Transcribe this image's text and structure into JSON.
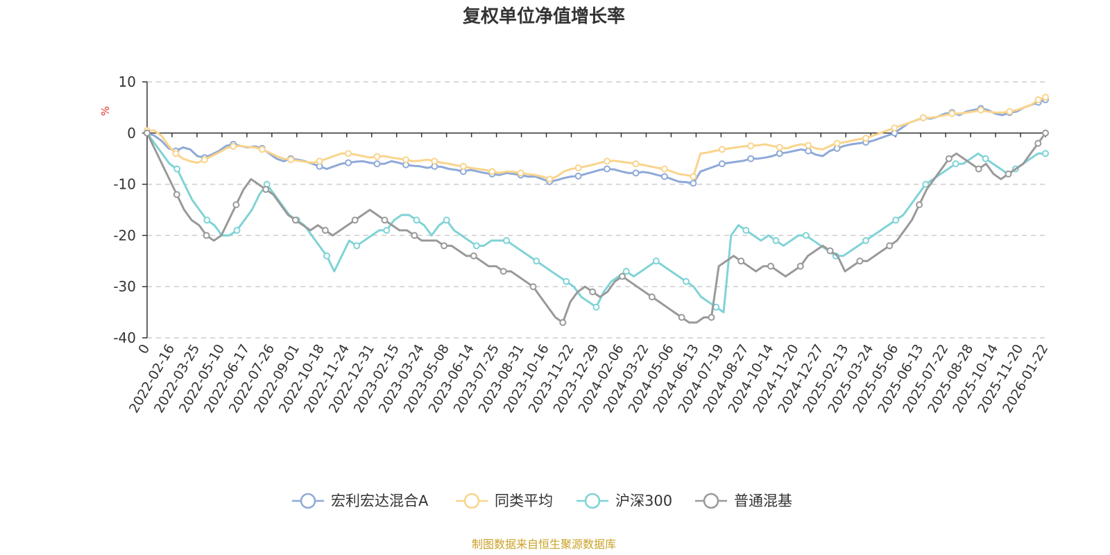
{
  "chart_data": {
    "type": "line",
    "title": "复权单位净值增长率",
    "ylabel": "%",
    "ylim": [
      -40,
      10
    ],
    "yticks": [
      10,
      0,
      -10,
      -20,
      -30,
      -40
    ],
    "grid": true,
    "legend_position": "bottom",
    "source_note": "制图数据来自恒生聚源数据库",
    "x_tick_labels": [
      "0",
      "2022-02-16",
      "2022-03-25",
      "2022-05-10",
      "2022-06-17",
      "2022-07-26",
      "2022-09-01",
      "2022-10-18",
      "2022-11-24",
      "2022-12-31",
      "2023-02-15",
      "2023-03-24",
      "2023-05-08",
      "2023-06-14",
      "2023-07-25",
      "2023-08-31",
      "2023-10-16",
      "2023-11-22",
      "2023-12-29",
      "2024-02-06",
      "2024-03-22",
      "2024-05-06",
      "2024-06-13",
      "2024-07-19",
      "2024-08-27",
      "2024-10-14",
      "2024-11-20",
      "2024-12-27",
      "2025-02-13",
      "2025-03-24",
      "2025-05-06",
      "2025-06-13",
      "2025-07-22",
      "2025-08-28",
      "2025-10-14",
      "2025-11-20",
      "2026-01-22"
    ],
    "series": [
      {
        "name": "宏利宏达混合A",
        "color": "#8ea9d8",
        "values": [
          0,
          -0.5,
          -1.5,
          -3,
          -3.5,
          -2.8,
          -3.2,
          -4.5,
          -4.8,
          -4.2,
          -3.5,
          -2.5,
          -2.2,
          -2.5,
          -2.8,
          -2.6,
          -3,
          -4,
          -5,
          -5.5,
          -5,
          -5.2,
          -5.5,
          -6,
          -6.5,
          -7,
          -6.5,
          -6,
          -5.8,
          -5.6,
          -5.5,
          -5.8,
          -6,
          -6,
          -5.5,
          -5.8,
          -6.2,
          -6.4,
          -6.5,
          -6.8,
          -6.5,
          -6.6,
          -7,
          -7.2,
          -7.5,
          -7.2,
          -7.5,
          -7.8,
          -8,
          -8.2,
          -7.8,
          -8,
          -8.2,
          -8.5,
          -8.5,
          -9,
          -9.5,
          -9.2,
          -8.8,
          -8.5,
          -8.4,
          -8,
          -7.6,
          -7.2,
          -7,
          -7.1,
          -7.5,
          -7.8,
          -7.8,
          -7.6,
          -7.8,
          -8.2,
          -8.5,
          -9,
          -9.5,
          -9.6,
          -9.8,
          -7.5,
          -7,
          -6.5,
          -6,
          -5.8,
          -5.6,
          -5.4,
          -5,
          -5,
          -4.8,
          -4.5,
          -4,
          -3.8,
          -3.5,
          -3.2,
          -3.5,
          -4.2,
          -4.5,
          -3.5,
          -3,
          -2.5,
          -2.2,
          -2,
          -1.8,
          -1.5,
          -1,
          -0.5,
          0,
          1,
          2,
          2.5,
          3,
          2.8,
          3.2,
          3.8,
          4,
          3.5,
          4.2,
          4.5,
          4.8,
          4.5,
          3.8,
          3.5,
          4,
          4.2,
          5,
          5.5,
          6,
          6.5
        ]
      },
      {
        "name": "同类平均",
        "color": "#f9d48b",
        "values": [
          0.5,
          0.5,
          -0.5,
          -2.5,
          -4,
          -5,
          -5.5,
          -5.8,
          -5.2,
          -4.5,
          -3.8,
          -3,
          -2.6,
          -2.5,
          -2.7,
          -2.8,
          -3.2,
          -3.8,
          -4.5,
          -5,
          -5.2,
          -5.4,
          -5.6,
          -5.8,
          -5.5,
          -5,
          -4.5,
          -4,
          -4,
          -4.2,
          -4.5,
          -4.8,
          -4.6,
          -4.5,
          -4.8,
          -5,
          -5.2,
          -5.5,
          -5.4,
          -5.2,
          -5.5,
          -5.8,
          -6,
          -6.3,
          -6.5,
          -6.8,
          -7,
          -7.2,
          -7.5,
          -7.8,
          -7.5,
          -7.6,
          -7.8,
          -8,
          -8.2,
          -8.5,
          -9,
          -8.5,
          -7.5,
          -7,
          -6.8,
          -6.5,
          -6.2,
          -5.8,
          -5.5,
          -5.4,
          -5.6,
          -5.8,
          -6,
          -6.2,
          -6.5,
          -6.8,
          -7,
          -7.5,
          -8,
          -8.2,
          -8.5,
          -4,
          -3.8,
          -3.5,
          -3.2,
          -3,
          -2.8,
          -2.6,
          -2.5,
          -2.4,
          -2.2,
          -2.5,
          -2.8,
          -3,
          -2.5,
          -2.2,
          -2.4,
          -3,
          -3.2,
          -2.5,
          -2,
          -1.8,
          -1.5,
          -1.2,
          -1,
          -0.5,
          0,
          0.5,
          1,
          1.5,
          2,
          2.5,
          3,
          3,
          3.2,
          3.5,
          3.8,
          3.8,
          4,
          4.2,
          4.5,
          4.2,
          4,
          4,
          4.2,
          4.5,
          5,
          5.5,
          6.5,
          7
        ]
      },
      {
        "name": "沪深300",
        "color": "#7fd3d6",
        "values": [
          0,
          -2,
          -4,
          -6,
          -7,
          -10,
          -13,
          -15,
          -17,
          -18,
          -20,
          -20,
          -19,
          -17,
          -15,
          -12,
          -10,
          -12,
          -14,
          -16,
          -17,
          -18,
          -20,
          -22,
          -24,
          -27,
          -24,
          -21,
          -22,
          -21,
          -20,
          -19,
          -19,
          -17,
          -16,
          -16,
          -17,
          -18,
          -20,
          -18,
          -17,
          -19,
          -20,
          -21,
          -22,
          -22,
          -21,
          -21,
          -21,
          -22,
          -23,
          -24,
          -25,
          -26,
          -27,
          -28,
          -29,
          -30,
          -32,
          -33,
          -34,
          -31,
          -29,
          -28,
          -27,
          -28,
          -27,
          -26,
          -25,
          -26,
          -27,
          -28,
          -29,
          -30,
          -32,
          -33,
          -34,
          -35,
          -20,
          -18,
          -19,
          -20,
          -21,
          -20,
          -21,
          -22,
          -21,
          -20,
          -20,
          -21,
          -22,
          -23,
          -24,
          -24,
          -23,
          -22,
          -21,
          -20,
          -19,
          -18,
          -17,
          -16,
          -14,
          -12,
          -10,
          -9,
          -8,
          -7,
          -6,
          -6,
          -5,
          -4,
          -5,
          -6,
          -7,
          -8,
          -7,
          -6,
          -5,
          -4,
          -4
        ]
      },
      {
        "name": "普通混基",
        "color": "#999999",
        "values": [
          0,
          -3,
          -6,
          -9,
          -12,
          -15,
          -17,
          -18,
          -20,
          -21,
          -20,
          -17,
          -14,
          -11,
          -9,
          -10,
          -11,
          -12,
          -14,
          -16,
          -17,
          -18,
          -19,
          -18,
          -19,
          -20,
          -19,
          -18,
          -17,
          -16,
          -15,
          -16,
          -17,
          -18,
          -19,
          -19,
          -20,
          -21,
          -21,
          -21,
          -22,
          -22,
          -23,
          -24,
          -24,
          -25,
          -26,
          -26,
          -27,
          -27,
          -28,
          -29,
          -30,
          -32,
          -34,
          -36,
          -37,
          -33,
          -31,
          -30,
          -31,
          -32,
          -31,
          -29,
          -28,
          -29,
          -30,
          -31,
          -32,
          -33,
          -34,
          -35,
          -36,
          -37,
          -37,
          -36,
          -36,
          -26,
          -25,
          -24,
          -25,
          -26,
          -27,
          -26,
          -26,
          -27,
          -28,
          -27,
          -26,
          -24,
          -23,
          -22,
          -23,
          -24,
          -27,
          -26,
          -25,
          -25,
          -24,
          -23,
          -22,
          -21,
          -19,
          -17,
          -14,
          -11,
          -9,
          -7,
          -5,
          -4,
          -5,
          -6,
          -7,
          -6,
          -8,
          -9,
          -8,
          -7,
          -6,
          -4,
          -2,
          0
        ]
      }
    ]
  }
}
